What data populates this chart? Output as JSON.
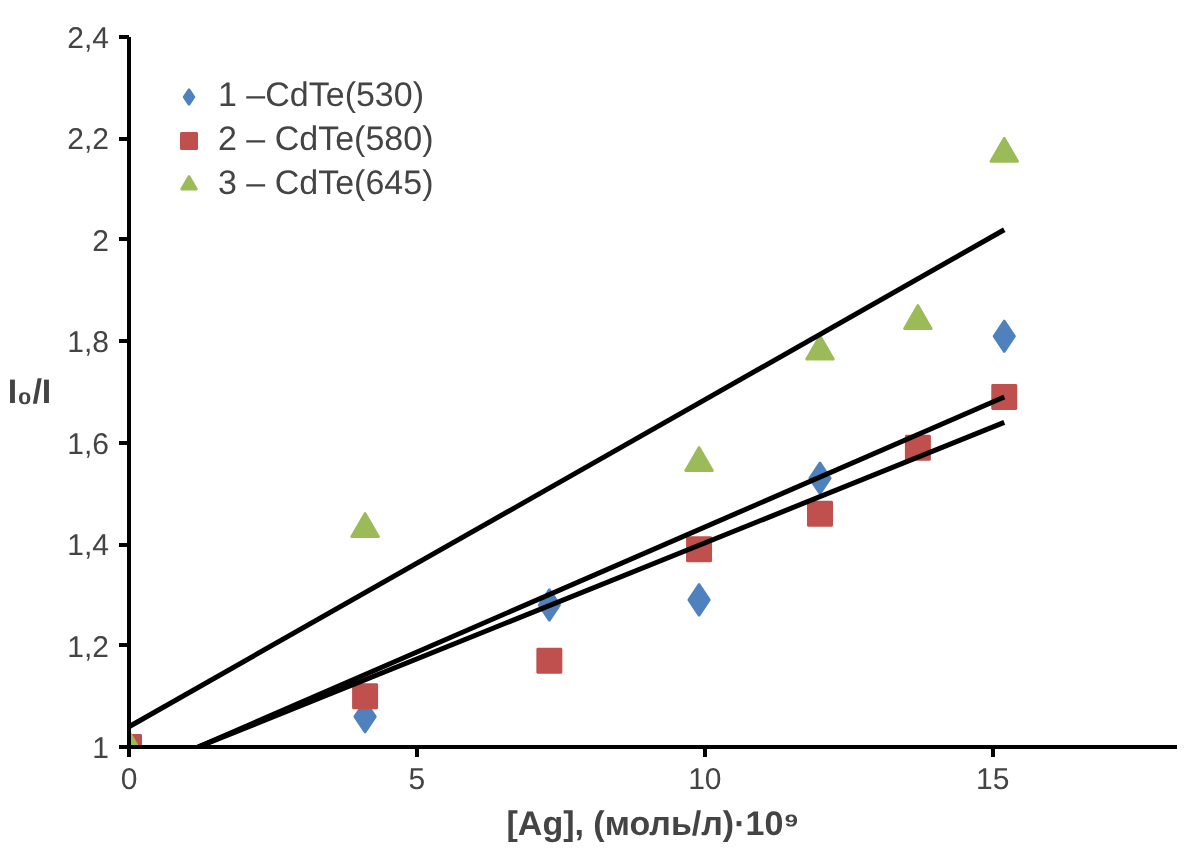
{
  "chart_data": {
    "type": "scatter",
    "xlabel": "[Ag], (моль/л)·10⁹",
    "ylabel": "I₀/I",
    "xlim": [
      0,
      18.2
    ],
    "xticks": [
      0,
      5,
      10,
      15
    ],
    "ylim": [
      1,
      2.4
    ],
    "yticks": [
      1,
      {
        "value": 1.2,
        "label": "1,2"
      },
      {
        "value": 1.4,
        "label": "1,4"
      },
      {
        "value": 1.6,
        "label": "1,6"
      },
      {
        "value": 1.8,
        "label": "1,8"
      },
      2,
      {
        "value": 2.2,
        "label": "2,2"
      },
      {
        "value": 2.4,
        "label": "2,4"
      }
    ],
    "grid": false,
    "legend": "top left",
    "series": [
      {
        "name": "1 –CdTe(530)",
        "color": "#4f81bd",
        "marker": "diamond",
        "x": [
          4.1,
          7.3,
          9.9,
          12.0,
          15.2
        ],
        "values": [
          1.06,
          1.28,
          1.29,
          1.53,
          1.81
        ]
      },
      {
        "name": "2 – CdTe(580)",
        "color": "#c0504d",
        "marker": "square",
        "x": [
          0,
          4.1,
          7.3,
          9.9,
          12.0,
          13.7,
          15.2
        ],
        "values": [
          1.0,
          1.1,
          1.17,
          1.39,
          1.46,
          1.59,
          1.69
        ]
      },
      {
        "name": "3 – CdTe(645)",
        "color": "#9bbb59",
        "marker": "triangle",
        "x": [
          0,
          4.1,
          9.9,
          12.0,
          13.7,
          15.2
        ],
        "values": [
          1.0,
          1.43,
          1.56,
          1.78,
          1.84,
          2.17
        ]
      },
      {
        "type": "line",
        "color": "#000000",
        "line_style": "solid",
        "x": [
          0,
          15.2
        ],
        "values": [
          1.04,
          2.02
        ]
      },
      {
        "type": "line",
        "color": "#000000",
        "line_style": "solid",
        "x": [
          1.2,
          15.2
        ],
        "values": [
          1.0,
          1.69
        ]
      },
      {
        "type": "line",
        "color": "#000000",
        "line_style": "solid",
        "x": [
          1.2,
          15.2
        ],
        "values": [
          1.0,
          1.64
        ]
      }
    ]
  }
}
